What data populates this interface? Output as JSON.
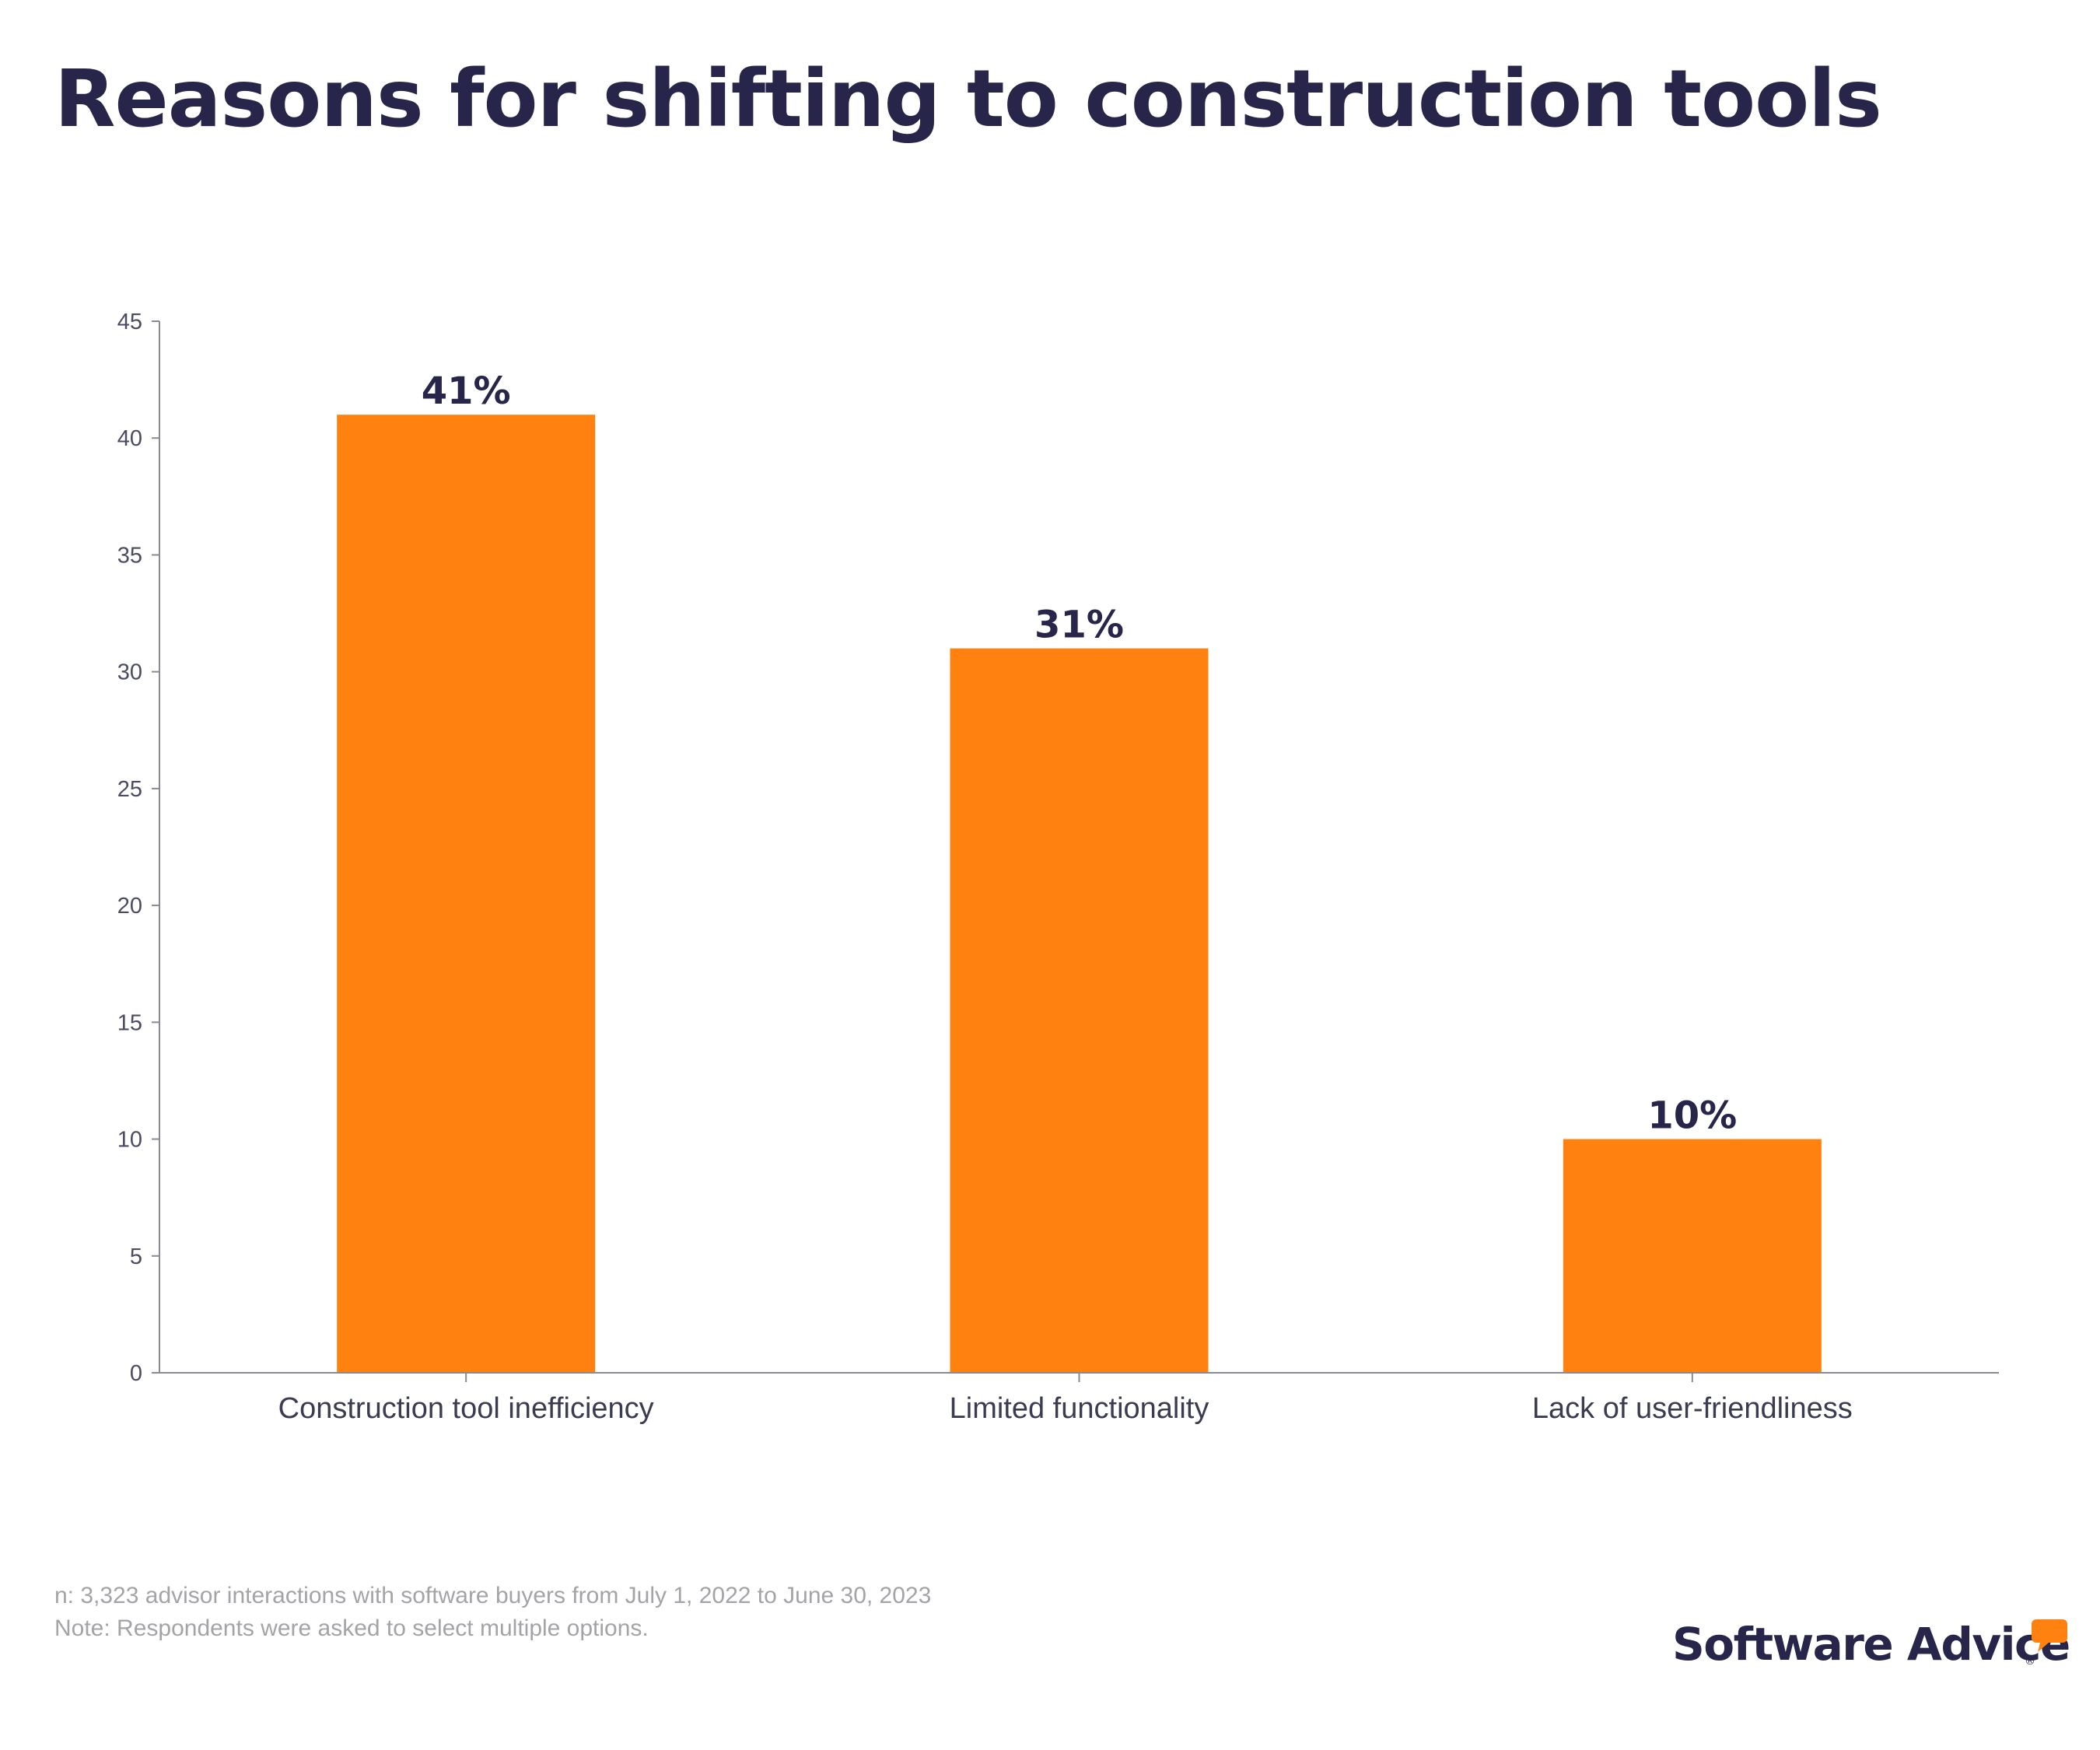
{
  "title": "Reasons for shifting to construction tools",
  "chart_data": {
    "type": "bar",
    "categories": [
      "Construction tool inefficiency",
      "Limited functionality",
      "Lack of user-friendliness"
    ],
    "values": [
      41,
      31,
      10
    ],
    "data_labels": [
      "41%",
      "31%",
      "10%"
    ],
    "title": "Reasons for shifting to construction tools",
    "xlabel": "",
    "ylabel": "",
    "ylim": [
      0,
      45
    ],
    "yticks": [
      0,
      5,
      10,
      15,
      20,
      25,
      30,
      35,
      40,
      45
    ],
    "grid": false,
    "legend": "none",
    "bar_color": "#ff8210"
  },
  "footnotes": {
    "sample": "n: 3,323 advisor interactions with software buyers from July 1, 2022 to June 30, 2023",
    "note": "Note: Respondents were asked to select multiple options."
  },
  "brand": {
    "name": "Software Advice",
    "registered": "®",
    "accent": "#ff8210"
  },
  "colors": {
    "title": "#27264a",
    "axis": "#8a8a96",
    "tick_label": "#4b4b63",
    "footnote": "#a3a3a8"
  }
}
